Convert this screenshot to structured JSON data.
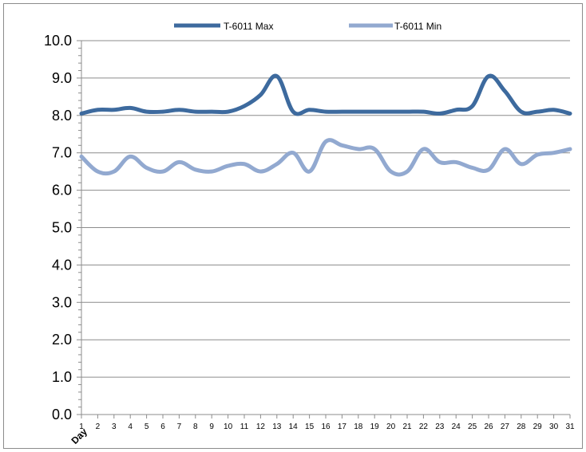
{
  "chart_data": {
    "type": "line",
    "title": "",
    "xlabel": "Day",
    "ylabel": "",
    "ylim": [
      0,
      10
    ],
    "yticks": [
      "0.0",
      "1.0",
      "2.0",
      "3.0",
      "4.0",
      "5.0",
      "6.0",
      "7.0",
      "8.0",
      "9.0",
      "10.0"
    ],
    "x": [
      "1",
      "2",
      "3",
      "4",
      "5",
      "6",
      "7",
      "8",
      "9",
      "10",
      "11",
      "12",
      "13",
      "14",
      "15",
      "16",
      "17",
      "18",
      "19",
      "20",
      "21",
      "22",
      "23",
      "24",
      "25",
      "26",
      "27",
      "28",
      "29",
      "30",
      "31"
    ],
    "grid": "horizontal",
    "legend": "top-center",
    "series": [
      {
        "name": "T-6011 Max",
        "color": "#3d6a9e",
        "values": [
          8.05,
          8.15,
          8.15,
          8.2,
          8.1,
          8.1,
          8.15,
          8.1,
          8.1,
          8.1,
          8.25,
          8.55,
          9.05,
          8.1,
          8.15,
          8.1,
          8.1,
          8.1,
          8.1,
          8.1,
          8.1,
          8.1,
          8.05,
          8.15,
          8.25,
          9.05,
          8.65,
          8.1,
          8.1,
          8.15,
          8.05
        ]
      },
      {
        "name": "T-6011 Min",
        "color": "#92a9d0",
        "values": [
          6.9,
          6.5,
          6.5,
          6.9,
          6.6,
          6.5,
          6.75,
          6.55,
          6.5,
          6.65,
          6.7,
          6.5,
          6.7,
          7.0,
          6.5,
          7.3,
          7.2,
          7.1,
          7.1,
          6.5,
          6.5,
          7.1,
          6.75,
          6.75,
          6.6,
          6.55,
          7.1,
          6.7,
          6.95,
          7.0,
          7.1
        ]
      }
    ]
  }
}
